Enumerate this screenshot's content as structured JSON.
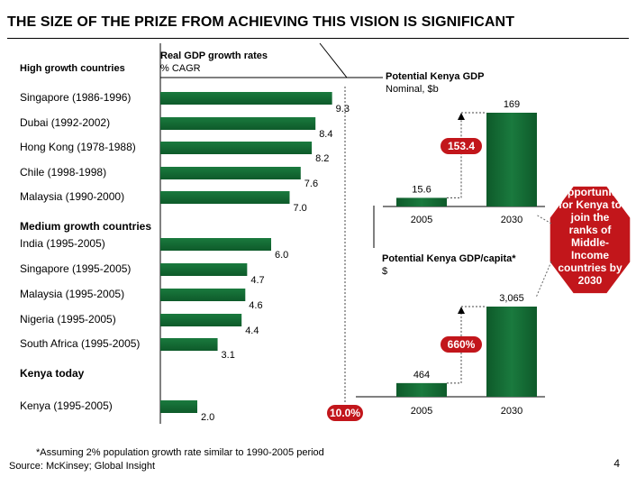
{
  "title": "THE SIZE OF THE PRIZE FROM ACHIEVING THIS VISION IS SIGNIFICANT",
  "left_panel": {
    "group_high": "High growth countries",
    "metric_title": "Real GDP growth rates",
    "metric_unit": "% CAGR",
    "group_medium": "Medium growth countries",
    "group_kenya": "Kenya today",
    "target_label": "10.0%"
  },
  "kenya_gdp": {
    "title": "Potential Kenya GDP",
    "unit": "Nominal, $b",
    "growth_label": "153.4"
  },
  "kenya_gdp_capita": {
    "title": "Potential Kenya GDP/capita*",
    "unit": "$",
    "growth_label": "660%"
  },
  "opportunity_text": [
    "Opportunity",
    "for Kenya to",
    "join the",
    "ranks of",
    "Middle-",
    "Income",
    "countries by",
    "2030"
  ],
  "footnote": "*Assuming 2% population growth rate similar to 1990-2005 period",
  "source": "Source: McKinsey; Global Insight",
  "page_number": "4",
  "colors": {
    "bar": "#1a7a3e",
    "bar_dark": "#0e5a2a",
    "callout": "#c2161b"
  },
  "chart_data": [
    {
      "type": "bar",
      "orientation": "horizontal",
      "title": "Real GDP growth rates",
      "ylabel": "% CAGR",
      "categories": [
        "Singapore (1986-1996)",
        "Dubai (1992-2002)",
        "Hong Kong (1978-1988)",
        "Chile (1998-1998)",
        "Malaysia (1990-2000)",
        "India (1995-2005)",
        "Singapore (1995-2005)",
        "Malaysia (1995-2005)",
        "Nigeria (1995-2005)",
        "South Africa (1995-2005)",
        "Kenya (1995-2005)"
      ],
      "groups": [
        "high",
        "high",
        "high",
        "high",
        "high",
        "medium",
        "medium",
        "medium",
        "medium",
        "medium",
        "kenya"
      ],
      "values": [
        9.3,
        8.4,
        8.2,
        7.6,
        7.0,
        6.0,
        4.7,
        4.6,
        4.4,
        3.1,
        2.0
      ],
      "value_labels": [
        "9.3",
        "8.4",
        "8.2",
        "7.6",
        "7.0",
        "6.0",
        "4.7",
        "4.6",
        "4.4",
        "3.1",
        "2.0"
      ],
      "target": 10.0
    },
    {
      "type": "bar",
      "title": "Potential Kenya GDP",
      "ylabel": "Nominal, $b",
      "categories": [
        "2005",
        "2030"
      ],
      "values": [
        15.6,
        169
      ],
      "value_labels": [
        "15.6",
        "169"
      ],
      "annotation": "153.4"
    },
    {
      "type": "bar",
      "title": "Potential Kenya GDP/capita*",
      "ylabel": "$",
      "categories": [
        "2005",
        "2030"
      ],
      "values": [
        464,
        3065
      ],
      "value_labels": [
        "464",
        "3,065"
      ],
      "annotation": "660%"
    }
  ]
}
